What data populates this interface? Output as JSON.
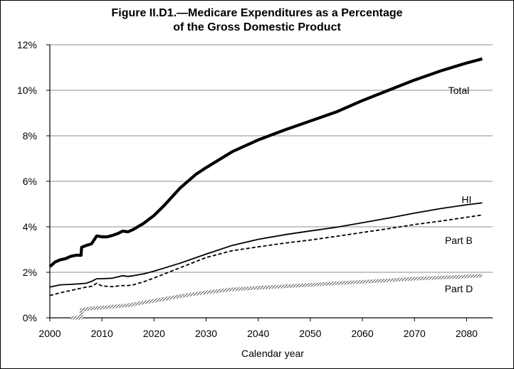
{
  "figure": {
    "title_line1": "Figure II.D1.—Medicare Expenditures as a Percentage",
    "title_line2": "of the Gross Domestic Product"
  },
  "chart_data": {
    "type": "line",
    "title": "Figure II.D1.—Medicare Expenditures as a Percentage of the Gross Domestic Product",
    "xlabel": "Calendar year",
    "ylabel": "",
    "xlim": [
      2000,
      2085
    ],
    "ylim": [
      0,
      12
    ],
    "x_ticks": [
      2000,
      2010,
      2020,
      2030,
      2040,
      2050,
      2060,
      2070,
      2080
    ],
    "y_ticks": [
      {
        "value": 0,
        "label": "0%"
      },
      {
        "value": 2,
        "label": "2%"
      },
      {
        "value": 4,
        "label": "4%"
      },
      {
        "value": 6,
        "label": "6%"
      },
      {
        "value": 8,
        "label": "8%"
      },
      {
        "value": 10,
        "label": "10%"
      },
      {
        "value": 12,
        "label": "12%"
      }
    ],
    "grid": "horizontal",
    "legend": "none (inline series labels)",
    "series": [
      {
        "name": "Total",
        "style": "thick-solid",
        "color": "#000000",
        "points": [
          [
            2000,
            2.25
          ],
          [
            2001,
            2.45
          ],
          [
            2002,
            2.55
          ],
          [
            2003,
            2.6
          ],
          [
            2004,
            2.7
          ],
          [
            2005,
            2.75
          ],
          [
            2006,
            2.75
          ],
          [
            2006.1,
            3.1
          ],
          [
            2007,
            3.18
          ],
          [
            2008,
            3.25
          ],
          [
            2009,
            3.6
          ],
          [
            2010,
            3.56
          ],
          [
            2011,
            3.56
          ],
          [
            2012,
            3.62
          ],
          [
            2013,
            3.7
          ],
          [
            2014,
            3.81
          ],
          [
            2015,
            3.78
          ],
          [
            2016,
            3.88
          ],
          [
            2018,
            4.15
          ],
          [
            2020,
            4.5
          ],
          [
            2022,
            4.95
          ],
          [
            2025,
            5.7
          ],
          [
            2028,
            6.3
          ],
          [
            2030,
            6.6
          ],
          [
            2035,
            7.3
          ],
          [
            2040,
            7.82
          ],
          [
            2045,
            8.25
          ],
          [
            2050,
            8.65
          ],
          [
            2055,
            9.05
          ],
          [
            2060,
            9.55
          ],
          [
            2065,
            10.0
          ],
          [
            2070,
            10.45
          ],
          [
            2075,
            10.85
          ],
          [
            2080,
            11.2
          ],
          [
            2083,
            11.38
          ]
        ]
      },
      {
        "name": "HI",
        "style": "solid",
        "color": "#000000",
        "points": [
          [
            2000,
            1.35
          ],
          [
            2002,
            1.45
          ],
          [
            2004,
            1.47
          ],
          [
            2006,
            1.5
          ],
          [
            2007,
            1.52
          ],
          [
            2008,
            1.6
          ],
          [
            2009,
            1.72
          ],
          [
            2010,
            1.72
          ],
          [
            2012,
            1.74
          ],
          [
            2014,
            1.85
          ],
          [
            2015,
            1.82
          ],
          [
            2016,
            1.85
          ],
          [
            2018,
            1.93
          ],
          [
            2020,
            2.05
          ],
          [
            2025,
            2.4
          ],
          [
            2030,
            2.8
          ],
          [
            2035,
            3.18
          ],
          [
            2040,
            3.45
          ],
          [
            2045,
            3.65
          ],
          [
            2050,
            3.82
          ],
          [
            2055,
            3.98
          ],
          [
            2060,
            4.18
          ],
          [
            2065,
            4.38
          ],
          [
            2070,
            4.6
          ],
          [
            2075,
            4.8
          ],
          [
            2080,
            4.97
          ],
          [
            2083,
            5.05
          ]
        ]
      },
      {
        "name": "Part B",
        "style": "dashed",
        "color": "#000000",
        "points": [
          [
            2000,
            0.98
          ],
          [
            2002,
            1.1
          ],
          [
            2004,
            1.2
          ],
          [
            2006,
            1.3
          ],
          [
            2007,
            1.35
          ],
          [
            2008,
            1.38
          ],
          [
            2009,
            1.52
          ],
          [
            2010,
            1.4
          ],
          [
            2012,
            1.37
          ],
          [
            2014,
            1.42
          ],
          [
            2015,
            1.42
          ],
          [
            2016,
            1.45
          ],
          [
            2018,
            1.58
          ],
          [
            2020,
            1.75
          ],
          [
            2025,
            2.2
          ],
          [
            2030,
            2.65
          ],
          [
            2035,
            2.95
          ],
          [
            2040,
            3.12
          ],
          [
            2045,
            3.28
          ],
          [
            2050,
            3.42
          ],
          [
            2055,
            3.58
          ],
          [
            2060,
            3.75
          ],
          [
            2065,
            3.92
          ],
          [
            2070,
            4.1
          ],
          [
            2075,
            4.25
          ],
          [
            2080,
            4.42
          ],
          [
            2083,
            4.52
          ]
        ]
      },
      {
        "name": "Part D",
        "style": "hatched-band",
        "color": "#777777",
        "points": [
          [
            2004,
            0.0
          ],
          [
            2006,
            0.0
          ],
          [
            2006.1,
            0.35
          ],
          [
            2008,
            0.42
          ],
          [
            2010,
            0.45
          ],
          [
            2015,
            0.55
          ],
          [
            2020,
            0.75
          ],
          [
            2025,
            0.95
          ],
          [
            2030,
            1.12
          ],
          [
            2035,
            1.25
          ],
          [
            2040,
            1.32
          ],
          [
            2045,
            1.38
          ],
          [
            2050,
            1.45
          ],
          [
            2055,
            1.52
          ],
          [
            2060,
            1.58
          ],
          [
            2065,
            1.65
          ],
          [
            2070,
            1.72
          ],
          [
            2075,
            1.77
          ],
          [
            2080,
            1.82
          ],
          [
            2083,
            1.86
          ]
        ]
      }
    ],
    "annotations": [
      {
        "text": "Total",
        "x": 2078.5,
        "y": 9.85
      },
      {
        "text": "HI",
        "x": 2080,
        "y": 5.05
      },
      {
        "text": "Part B",
        "x": 2078.5,
        "y": 3.25
      },
      {
        "text": "Part D",
        "x": 2078.5,
        "y": 1.13
      }
    ]
  }
}
